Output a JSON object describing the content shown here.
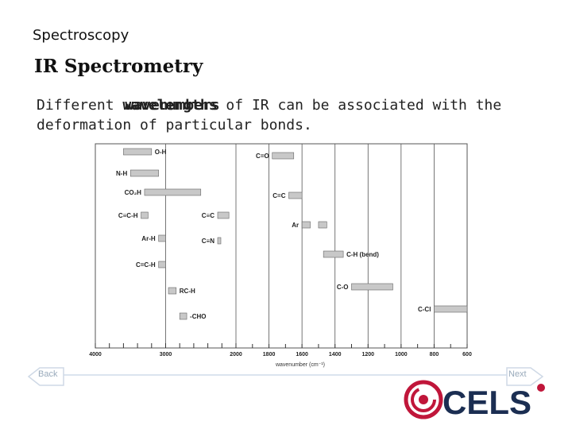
{
  "header": {
    "breadcrumb": "Spectroscopy",
    "title": "IR Spectrometry"
  },
  "intro": {
    "prefix": "Different ",
    "overlap_word_a": "wavelengths",
    "overlap_word_b": "wavenumbers",
    "suffix": " of IR can be associated with the deformation of particular bonds."
  },
  "chart_data": {
    "type": "table",
    "xlabel": "wavenumber (cm⁻¹)",
    "xlim": [
      4000,
      600
    ],
    "x_ticks": [
      "4000",
      "3000",
      "2000",
      "1800",
      "1600",
      "1400",
      "1200",
      "1000",
      "800",
      "600"
    ],
    "bands": [
      {
        "label": "O-H",
        "from": 3600,
        "to": 3200
      },
      {
        "label": "N-H",
        "from": 3500,
        "to": 3100
      },
      {
        "label": "CO₂H",
        "from": 3300,
        "to": 2500
      },
      {
        "label": "C≡C-H",
        "from": 3350,
        "to": 3250
      },
      {
        "label": "Ar-H",
        "from": 3100,
        "to": 3000
      },
      {
        "label": "C=C-H",
        "from": 3100,
        "to": 3000
      },
      {
        "label": "RC-H",
        "from": 2960,
        "to": 2850
      },
      {
        "label": "-CHO",
        "from": 2800,
        "to": 2700
      },
      {
        "label": "C=O",
        "from": 1780,
        "to": 1650
      },
      {
        "label": "C≡C",
        "from": 2260,
        "to": 2100
      },
      {
        "label": "C≡N",
        "from": 2260,
        "to": 2220
      },
      {
        "label": "C=C",
        "from": 1680,
        "to": 1600
      },
      {
        "label": "Ar",
        "from": 1600,
        "to": 1550,
        "second_from": 1500,
        "second_to": 1450
      },
      {
        "label": "C-H (bend)",
        "from": 1470,
        "to": 1350
      },
      {
        "label": "C-O",
        "from": 1300,
        "to": 1050
      },
      {
        "label": "C-Cl",
        "from": 800,
        "to": 600
      }
    ]
  },
  "nav": {
    "back_label": "Back",
    "next_label": "Next"
  },
  "brand": {
    "logo_text": "CELS",
    "accent": "#c0163a",
    "navy": "#1b2e52"
  }
}
